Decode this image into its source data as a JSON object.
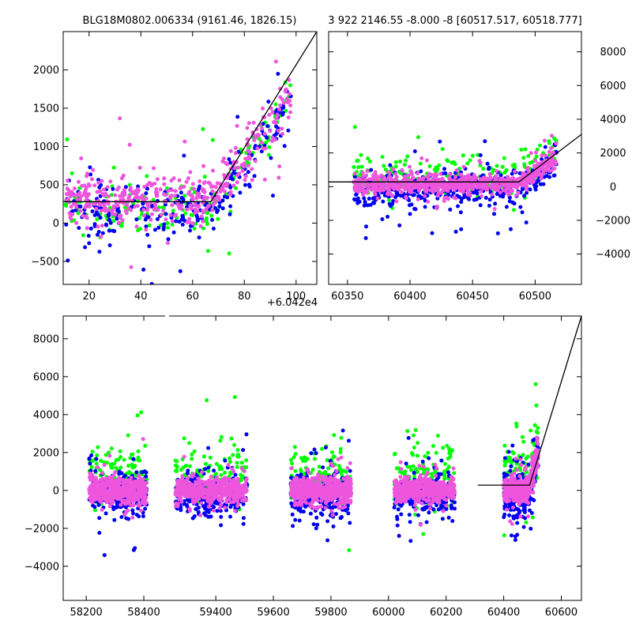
{
  "chart_data": [
    {
      "id": "top-left",
      "type": "scatter",
      "title": "BLG18M0802.006334 (9161.46, 1826.15)",
      "xlim": [
        10,
        108
      ],
      "ylim": [
        -800,
        2500
      ],
      "xticks": [
        20,
        40,
        60,
        80,
        100
      ],
      "yticks": [
        -500,
        0,
        500,
        1000,
        1500,
        2000
      ],
      "y_axis_side": "left",
      "x_offset_label": "+6.042e4",
      "model_line": [
        [
          10,
          280
        ],
        [
          67,
          280
        ],
        [
          108,
          2500
        ]
      ],
      "series": [
        {
          "color": "#00ff00",
          "center": 200,
          "spread": 450,
          "count": 170
        },
        {
          "color": "#0000ee",
          "center": 150,
          "spread": 450,
          "count": 260
        },
        {
          "color": "#ee55dd",
          "center": 300,
          "spread": 380,
          "count": 420
        }
      ],
      "rise": {
        "start": 67,
        "slope": 45
      }
    },
    {
      "id": "top-right",
      "type": "scatter",
      "title": "3 922 2146.55 -8.000 -8 [60517.517, 60518.777]",
      "xlim": [
        60335,
        60537
      ],
      "ylim": [
        -5800,
        9200
      ],
      "xticks": [
        60350,
        60400,
        60450,
        60500
      ],
      "yticks": [
        -4000,
        -2000,
        0,
        2000,
        4000,
        6000,
        8000
      ],
      "y_axis_side": "right",
      "model_line": [
        [
          60335,
          280
        ],
        [
          60487,
          280
        ],
        [
          60537,
          3100
        ]
      ],
      "series": [
        {
          "color": "#00ff00",
          "center": 600,
          "spread": 1500,
          "count": 220
        },
        {
          "color": "#0000ee",
          "center": -100,
          "spread": 1300,
          "count": 420
        },
        {
          "color": "#ee55dd",
          "center": 150,
          "spread": 700,
          "count": 700
        }
      ],
      "data_x_range": [
        60355,
        60517
      ],
      "rise": {
        "start": 60487,
        "slope": 55
      }
    },
    {
      "id": "bottom",
      "type": "scatter",
      "xlim": [
        58120,
        60670
      ],
      "ylim": [
        -5800,
        9200
      ],
      "xticks": [
        58200,
        58400,
        59400,
        59600,
        59800,
        60000,
        60200,
        60400,
        60600
      ],
      "yticks": [
        -4000,
        -2000,
        0,
        2000,
        4000,
        6000,
        8000
      ],
      "y_axis_side": "left",
      "axis_break": {
        "from": 58480,
        "to": 59230
      },
      "seasons": [
        [
          58210,
          58410
        ],
        [
          59260,
          59510
        ],
        [
          59660,
          59870
        ],
        [
          60020,
          60230
        ],
        [
          60400,
          60520
        ]
      ],
      "model_line": [
        [
          60310,
          280
        ],
        [
          60490,
          280
        ],
        [
          60670,
          9200
        ]
      ],
      "series": [
        {
          "color": "#00ff00",
          "center": 800,
          "spread": 2000,
          "count": 600
        },
        {
          "color": "#0000ee",
          "center": -200,
          "spread": 1500,
          "count": 1100
        },
        {
          "color": "#ee55dd",
          "center": 0,
          "spread": 800,
          "count": 2400
        }
      ]
    }
  ]
}
